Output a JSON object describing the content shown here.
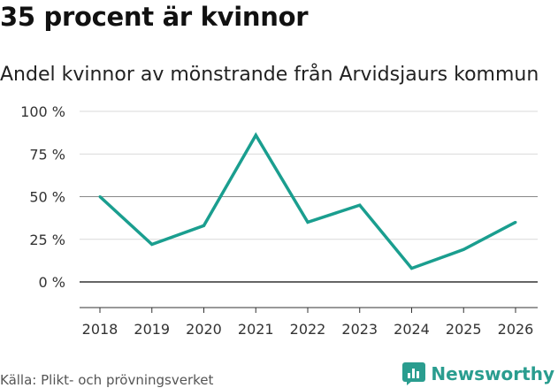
{
  "title": "35 procent är kvinnor",
  "subtitle": "Andel kvinnor av mönstrande från Arvidsjaurs kommun",
  "source": "Källa: Plikt- och prövningsverket",
  "brand": {
    "name": "Newsworthy",
    "icon": "newsworthy-logo-icon",
    "color": "#2a9d8f"
  },
  "chart_data": {
    "type": "line",
    "title": "35 procent är kvinnor",
    "subtitle": "Andel kvinnor av mönstrande från Arvidsjaurs kommun",
    "xlabel": "",
    "ylabel": "",
    "categories": [
      "2018",
      "2019",
      "2020",
      "2021",
      "2022",
      "2023",
      "2024",
      "2025",
      "2026"
    ],
    "series": [
      {
        "name": "Andel kvinnor",
        "values": [
          50,
          22,
          33,
          86,
          35,
          45,
          8,
          19,
          35
        ],
        "color": "#1a9e8f"
      }
    ],
    "ylim": [
      -15,
      100
    ],
    "yticks": [
      0,
      25,
      50,
      75,
      100
    ],
    "ytick_labels": [
      "0 %",
      "25 %",
      "50 %",
      "75 %",
      "100 %"
    ],
    "grid": true,
    "legend": "none"
  }
}
